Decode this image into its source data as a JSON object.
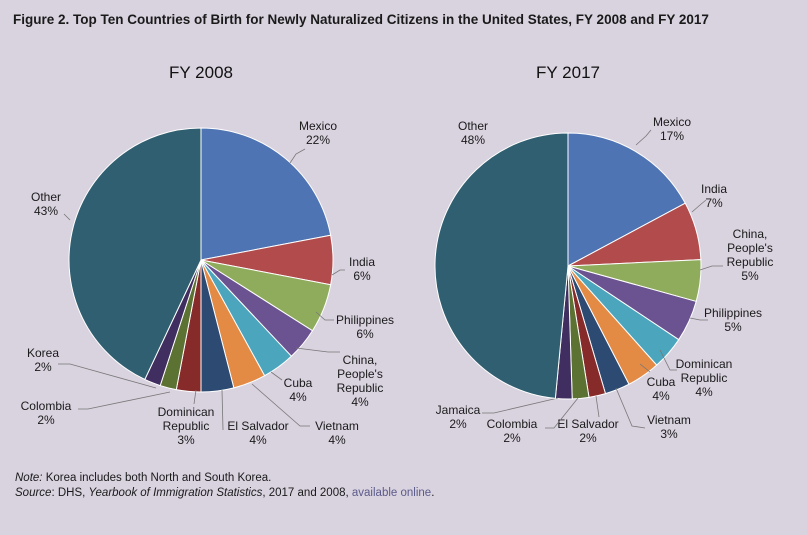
{
  "title": "Figure 2. Top Ten Countries of Birth for Newly Naturalized Citizens in the United States, FY 2008 and FY 2017",
  "chart_data": [
    {
      "type": "pie",
      "title": "FY 2008",
      "slices": [
        {
          "label": "Mexico",
          "value": 22,
          "display": "22%",
          "color": "#4f74b3"
        },
        {
          "label": "India",
          "value": 6,
          "display": "6%",
          "color": "#b24b4b"
        },
        {
          "label": "Philippines",
          "value": 6,
          "display": "6%",
          "color": "#8fac5d"
        },
        {
          "label": "China, People's Republic",
          "value": 4,
          "display": "4%",
          "color": "#6b5291"
        },
        {
          "label": "Cuba",
          "value": 4,
          "display": "4%",
          "color": "#4aa5bd"
        },
        {
          "label": "Vietnam",
          "value": 4,
          "display": "4%",
          "color": "#e38a45"
        },
        {
          "label": "El Salvador",
          "value": 4,
          "display": "4%",
          "color": "#2c4a72"
        },
        {
          "label": "Dominican Republic",
          "value": 3,
          "display": "3%",
          "color": "#862a2a"
        },
        {
          "label": "Colombia",
          "value": 2,
          "display": "2%",
          "color": "#5b7233"
        },
        {
          "label": "Korea",
          "value": 2,
          "display": "2%",
          "color": "#3f2e5f"
        },
        {
          "label": "Other",
          "value": 43,
          "display": "43%",
          "color": "#2f5f70"
        }
      ]
    },
    {
      "type": "pie",
      "title": "FY 2017",
      "slices": [
        {
          "label": "Mexico",
          "value": 17,
          "display": "17%",
          "color": "#4f74b3"
        },
        {
          "label": "India",
          "value": 7,
          "display": "7%",
          "color": "#b24b4b"
        },
        {
          "label": "China, People's Republic",
          "value": 5,
          "display": "5%",
          "color": "#8fac5d"
        },
        {
          "label": "Philippines",
          "value": 5,
          "display": "5%",
          "color": "#6b5291"
        },
        {
          "label": "Dominican Republic",
          "value": 4,
          "display": "4%",
          "color": "#4aa5bd"
        },
        {
          "label": "Cuba",
          "value": 4,
          "display": "4%",
          "color": "#e38a45"
        },
        {
          "label": "Vietnam",
          "value": 3,
          "display": "3%",
          "color": "#2c4a72"
        },
        {
          "label": "El Salvador",
          "value": 2,
          "display": "2%",
          "color": "#862a2a"
        },
        {
          "label": "Colombia",
          "value": 2,
          "display": "2%",
          "color": "#5b7233"
        },
        {
          "label": "Jamaica",
          "value": 2,
          "display": "2%",
          "color": "#3f2e5f"
        },
        {
          "label": "Other",
          "value": 48,
          "display": "48%",
          "color": "#2f5f70"
        }
      ]
    }
  ],
  "notes": {
    "note_label": "Note:",
    "note_text": " Korea includes both North and South Korea.",
    "source_label": "Source",
    "source_text_1": ": DHS, ",
    "source_italic": "Yearbook of Immigration Statistics",
    "source_text_2": ", 2017 and 2008, ",
    "source_link": "available online",
    "source_end": "."
  }
}
